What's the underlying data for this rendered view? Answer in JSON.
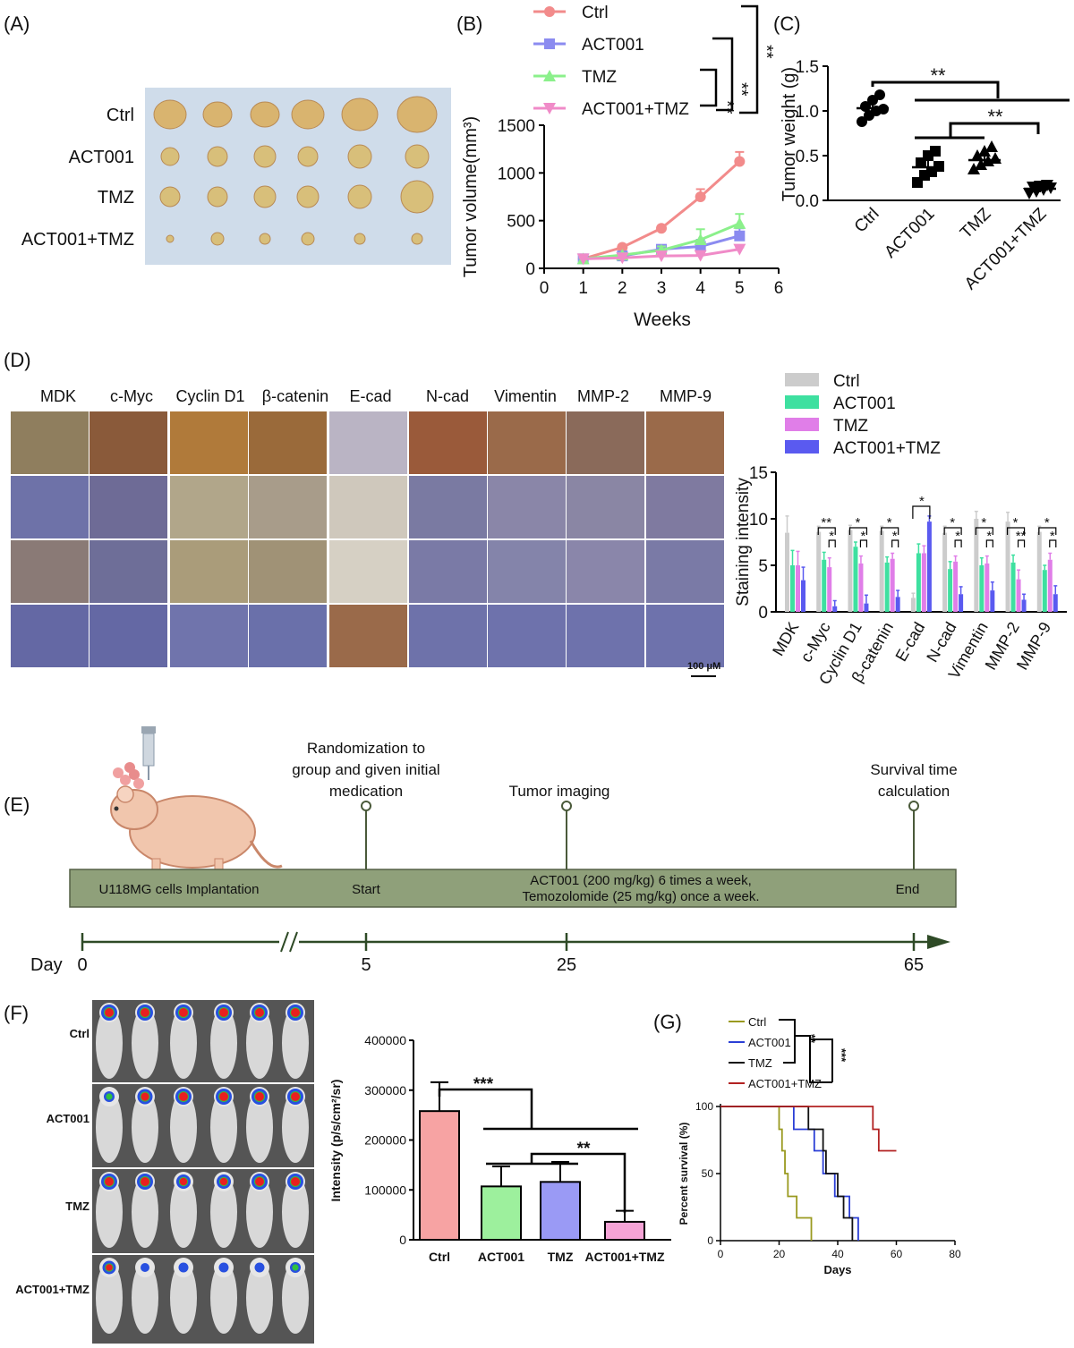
{
  "groups": [
    "Ctrl",
    "ACT001",
    "TMZ",
    "ACT001+TMZ"
  ],
  "colors": {
    "ctrl": "#f28b8b",
    "act001": "#8b8bf0",
    "tmz": "#8bf08b",
    "combo": "#f08bc8",
    "d_ctrl": "#cccccc",
    "d_act001": "#3ee0a0",
    "d_tmz": "#e07ee8",
    "d_combo": "#5a5af0",
    "f_ctrl": "#f7a3a3",
    "f_act001": "#9df09d",
    "f_tmz": "#9a9af5",
    "f_combo": "#f5a3d6",
    "g_ctrl": "#9a9a20",
    "g_act001": "#2b3fd6",
    "g_tmz": "#111111",
    "g_combo": "#b22222",
    "timeline_bar": "#8fa07a"
  },
  "panels": {
    "a": {
      "label": "(A)",
      "rows": [
        "Ctrl",
        "ACT001",
        "TMZ",
        "ACT001+TMZ"
      ]
    },
    "b": {
      "label": "(B)"
    },
    "c": {
      "label": "(C)"
    },
    "d": {
      "label": "(D)",
      "markers": [
        "MDK",
        "c-Myc",
        "Cyclin D1",
        "β-catenin",
        "E-cad",
        "N-cad",
        "Vimentin",
        "MMP-2",
        "MMP-9"
      ],
      "scale_bar": "100 μM"
    },
    "e": {
      "label": "(E)",
      "events": [
        {
          "text": "Randomization to\ngroup and given initial\nmedication"
        },
        {
          "text": "Tumor imaging"
        },
        {
          "text": "Survival time\ncalculation"
        }
      ],
      "bar_left": "U118MG cells Implantation",
      "bar_start": "Start",
      "bar_middle": "ACT001 (200 mg/kg) 6 times a week,\nTemozolomide (25 mg/kg) once a week.",
      "bar_end": "End",
      "day_label": "Day",
      "days": [
        "0",
        "5",
        "25",
        "65"
      ]
    },
    "f": {
      "label": "(F)",
      "rows": [
        "Ctrl",
        "ACT001",
        "TMZ",
        "ACT001+TMZ"
      ]
    },
    "g": {
      "label": "(G)"
    }
  },
  "chart_data": [
    {
      "id": "B",
      "type": "line",
      "xlabel": "Weeks",
      "ylabel": "Tumor volume(mm³)",
      "xlim": [
        0,
        6
      ],
      "ylim": [
        0,
        1500
      ],
      "xticks": [
        0,
        1,
        2,
        3,
        4,
        5,
        6
      ],
      "yticks": [
        0,
        500,
        1000,
        1500
      ],
      "x": [
        1,
        2,
        3,
        4,
        5
      ],
      "series": [
        {
          "name": "Ctrl",
          "values": [
            100,
            220,
            420,
            750,
            1120
          ],
          "err": [
            10,
            20,
            25,
            80,
            100
          ]
        },
        {
          "name": "ACT001",
          "values": [
            100,
            130,
            200,
            230,
            340
          ],
          "err": [
            10,
            20,
            30,
            70,
            80
          ]
        },
        {
          "name": "TMZ",
          "values": [
            100,
            140,
            190,
            300,
            470
          ],
          "err": [
            10,
            20,
            40,
            110,
            100
          ]
        },
        {
          "name": "ACT001+TMZ",
          "values": [
            100,
            110,
            130,
            135,
            200
          ],
          "err": [
            10,
            10,
            15,
            15,
            20
          ]
        }
      ],
      "annotations": [
        "**",
        "**",
        "**"
      ]
    },
    {
      "id": "C",
      "type": "scatter",
      "ylabel": "Tumor weight (g)",
      "ylim": [
        0,
        1.5
      ],
      "yticks": [
        "0.0",
        "0.5",
        "1.0",
        "1.5"
      ],
      "categories": [
        "Ctrl",
        "ACT001",
        "TMZ",
        "ACT001+TMZ"
      ],
      "points": [
        [
          0.88,
          0.95,
          1.0,
          1.02,
          1.05,
          1.12,
          1.18
        ],
        [
          0.2,
          0.28,
          0.32,
          0.38,
          0.42,
          0.5,
          0.55
        ],
        [
          0.35,
          0.4,
          0.44,
          0.47,
          0.5,
          0.55,
          0.6
        ],
        [
          0.08,
          0.1,
          0.12,
          0.14,
          0.15,
          0.16,
          0.17
        ]
      ],
      "mean": [
        1.03,
        0.37,
        0.45,
        0.13
      ],
      "sd": [
        0.1,
        0.12,
        0.08,
        0.04
      ],
      "annotations": [
        "**",
        "**"
      ]
    },
    {
      "id": "D",
      "type": "bar",
      "ylabel": "Staining intensity",
      "ylim": [
        0,
        15
      ],
      "yticks": [
        0,
        5,
        10,
        15
      ],
      "categories": [
        "MDK",
        "c-Myc",
        "Cyclin D1",
        "β-catenin",
        "E-cad",
        "N-cad",
        "Vimentin",
        "MMP-2",
        "MMP-9"
      ],
      "legend": "top",
      "series": [
        {
          "name": "Ctrl",
          "values": [
            8.5,
            8.6,
            8.8,
            8.7,
            1.5,
            8.5,
            10.0,
            9.7,
            8.6
          ],
          "err": [
            1.8,
            0.6,
            0.5,
            0.5,
            0.5,
            0.7,
            0.8,
            1.0,
            0.6
          ]
        },
        {
          "name": "ACT001",
          "values": [
            5.0,
            5.6,
            7.0,
            5.3,
            6.3,
            4.6,
            5.0,
            5.3,
            4.5
          ],
          "err": [
            1.6,
            0.8,
            0.5,
            0.6,
            1.0,
            0.8,
            0.8,
            0.8,
            0.5
          ]
        },
        {
          "name": "TMZ",
          "values": [
            5.0,
            4.8,
            5.2,
            5.7,
            6.3,
            5.4,
            5.2,
            3.5,
            5.6
          ],
          "err": [
            1.5,
            1.0,
            0.8,
            0.6,
            0.8,
            0.6,
            0.8,
            1.0,
            0.7
          ]
        },
        {
          "name": "ACT001+TMZ",
          "values": [
            3.4,
            0.6,
            0.9,
            1.6,
            9.7,
            1.9,
            2.3,
            1.3,
            1.9
          ],
          "err": [
            1.4,
            0.6,
            0.9,
            0.7,
            0.6,
            0.8,
            0.9,
            0.6,
            0.9
          ]
        }
      ],
      "annotations": [
        "**",
        "*",
        "*",
        "*",
        "*",
        "*",
        "*",
        "*",
        "*",
        "*",
        "*",
        "*",
        "**",
        "*",
        "*",
        "**"
      ]
    },
    {
      "id": "F",
      "type": "bar",
      "ylabel": "Intensity (p/s/cm²/sr)",
      "ylim": [
        0,
        400000
      ],
      "yticks": [
        "0",
        "100000",
        "200000",
        "300000",
        "400000"
      ],
      "categories": [
        "Ctrl",
        "ACT001",
        "TMZ",
        "ACT001+TMZ"
      ],
      "values": [
        258000,
        107000,
        116000,
        36000
      ],
      "err": [
        58000,
        40000,
        40000,
        22000
      ],
      "annotations": [
        "***",
        "**"
      ]
    },
    {
      "id": "G",
      "type": "line",
      "xlabel": "Days",
      "ylabel": "Percent survival (%)",
      "xlim": [
        0,
        80
      ],
      "ylim": [
        0,
        100
      ],
      "xticks": [
        0,
        20,
        40,
        60,
        80
      ],
      "yticks": [
        0,
        50,
        100
      ],
      "series": [
        {
          "name": "Ctrl",
          "steps": [
            [
              0,
              100
            ],
            [
              20,
              100
            ],
            [
              20,
              83
            ],
            [
              21,
              83
            ],
            [
              21,
              67
            ],
            [
              22,
              67
            ],
            [
              22,
              50
            ],
            [
              23,
              50
            ],
            [
              23,
              33
            ],
            [
              26,
              33
            ],
            [
              26,
              17
            ],
            [
              31,
              17
            ],
            [
              31,
              0
            ]
          ]
        },
        {
          "name": "ACT001",
          "steps": [
            [
              0,
              100
            ],
            [
              25,
              100
            ],
            [
              25,
              83
            ],
            [
              32,
              83
            ],
            [
              32,
              67
            ],
            [
              35,
              67
            ],
            [
              35,
              50
            ],
            [
              39,
              50
            ],
            [
              39,
              33
            ],
            [
              44,
              33
            ],
            [
              44,
              17
            ],
            [
              47,
              17
            ],
            [
              47,
              0
            ]
          ]
        },
        {
          "name": "TMZ",
          "steps": [
            [
              0,
              100
            ],
            [
              30,
              100
            ],
            [
              30,
              83
            ],
            [
              35,
              83
            ],
            [
              35,
              67
            ],
            [
              36,
              67
            ],
            [
              36,
              50
            ],
            [
              40,
              50
            ],
            [
              40,
              33
            ],
            [
              42,
              33
            ],
            [
              42,
              17
            ],
            [
              45,
              17
            ],
            [
              45,
              0
            ]
          ]
        },
        {
          "name": "ACT001+TMZ",
          "steps": [
            [
              0,
              100
            ],
            [
              52,
              100
            ],
            [
              52,
              83
            ],
            [
              54,
              83
            ],
            [
              54,
              67
            ],
            [
              60,
              67
            ]
          ]
        }
      ],
      "annotations": [
        "**",
        "***"
      ]
    }
  ]
}
